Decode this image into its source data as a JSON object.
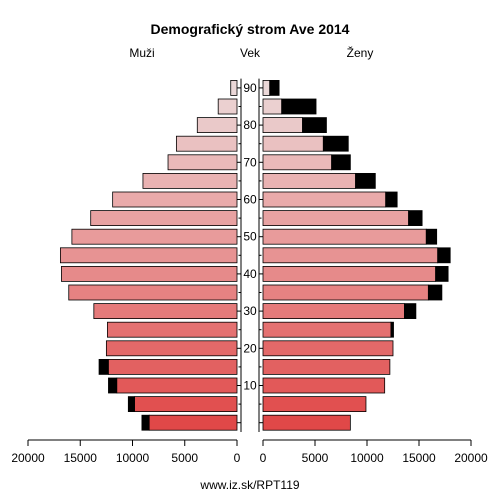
{
  "chart_data": {
    "type": "bar",
    "title": "Demografický strom Ave 2014",
    "left_label": "Muži",
    "center_label": "Vek",
    "right_label": "Ženy",
    "footer": "www.iz.sk/RPT119",
    "x_ticks_left": [
      "20000",
      "15000",
      "10000",
      "5000",
      "0"
    ],
    "x_ticks_right": [
      "0",
      "5000",
      "10000",
      "15000",
      "20000"
    ],
    "x_tick_values_left": [
      20000,
      15000,
      10000,
      5000,
      0
    ],
    "x_tick_values_right": [
      0,
      5000,
      10000,
      15000,
      20000
    ],
    "xlim": [
      0,
      20000
    ],
    "y_ticks": [
      "90",
      "80",
      "70",
      "60",
      "50",
      "40",
      "30",
      "20",
      "10"
    ],
    "y_tick_values": [
      90,
      80,
      70,
      60,
      50,
      40,
      30,
      20,
      10
    ],
    "age_groups": [
      0,
      5,
      10,
      15,
      20,
      25,
      30,
      35,
      40,
      45,
      50,
      55,
      60,
      65,
      70,
      75,
      80,
      85,
      90
    ],
    "series": [
      {
        "name": "Muži",
        "side": "left",
        "base": [
          8400,
          9800,
          11500,
          12300,
          12500,
          12400,
          13700,
          16100,
          16800,
          16900,
          15800,
          14000,
          11900,
          9000,
          6600,
          5800,
          3800,
          1800,
          600
        ],
        "excess": [
          700,
          600,
          800,
          900,
          0,
          0,
          0,
          0,
          0,
          0,
          0,
          0,
          0,
          0,
          0,
          0,
          0,
          0,
          0
        ]
      },
      {
        "name": "Ženy",
        "side": "right",
        "base": [
          8400,
          9900,
          11700,
          12200,
          12500,
          12300,
          13600,
          15900,
          16600,
          16800,
          15700,
          14000,
          11800,
          8900,
          6600,
          5800,
          3800,
          1800,
          650
        ],
        "excess": [
          0,
          0,
          0,
          0,
          0,
          250,
          1100,
          1300,
          1200,
          1200,
          1000,
          1300,
          1100,
          1900,
          1800,
          2400,
          2300,
          3300,
          900
        ]
      }
    ],
    "colors": {
      "excess": "#000000",
      "outline": "#000000",
      "fill_young": "#e04848",
      "fill_mid": "#e89a9a",
      "fill_old": "#ebd8d8"
    },
    "grid": false
  }
}
